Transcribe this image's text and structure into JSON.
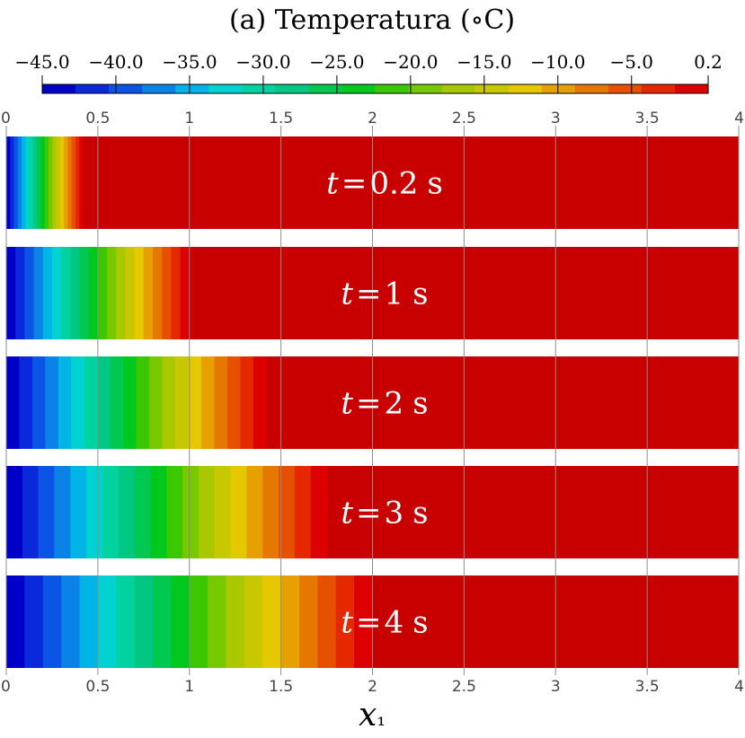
{
  "chart_data": {
    "type": "heatmap",
    "title": "(a) Temperatura (∘C)",
    "colorbar": {
      "min": -45.0,
      "max": 0.2,
      "tick_labels": [
        "−45.0",
        "−40.0",
        "−35.0",
        "−30.0",
        "−25.0",
        "−20.0",
        "−15.0",
        "−10.0",
        "−5.0",
        "0.2"
      ],
      "tick_values": [
        -45.0,
        -40.0,
        -35.0,
        -30.0,
        -25.0,
        -20.0,
        -15.0,
        -10.0,
        -5.0,
        0.2
      ],
      "colors": [
        "#0000c8",
        "#0a28dc",
        "#0a55e6",
        "#0a82e6",
        "#00b4e6",
        "#00d2d2",
        "#00d2a0",
        "#00c882",
        "#00c850",
        "#00c81e",
        "#3cc800",
        "#78c800",
        "#aac800",
        "#c8c800",
        "#e6c800",
        "#e6a000",
        "#e67800",
        "#e65000",
        "#e62800",
        "#dc0000"
      ]
    },
    "xlabel": "x₁",
    "x_ticks": [
      "0",
      "0.5",
      "1",
      "1.5",
      "2",
      "2.5",
      "3",
      "3.5",
      "4"
    ],
    "x_tick_values": [
      0,
      0.5,
      1,
      1.5,
      2,
      2.5,
      3,
      3.5,
      4
    ],
    "xlim": [
      0,
      4
    ],
    "grid": true,
    "series": [
      {
        "name": "t = 0.2 s",
        "front": 0.42
      },
      {
        "name": "t = 1 s",
        "front": 1.0
      },
      {
        "name": "t = 2 s",
        "front": 1.42
      },
      {
        "name": "t = 3 s",
        "front": 1.75
      },
      {
        "name": "t = 4 s",
        "front": 2.0
      }
    ],
    "labels": [
      {
        "t": "t",
        "eq": "=",
        "v": "0.2",
        "unit": "s"
      },
      {
        "t": "t",
        "eq": "=",
        "v": "1",
        "unit": "s"
      },
      {
        "t": "t",
        "eq": "=",
        "v": "2",
        "unit": "s"
      },
      {
        "t": "t",
        "eq": "=",
        "v": "3",
        "unit": "s"
      },
      {
        "t": "t",
        "eq": "=",
        "v": "4",
        "unit": "s"
      }
    ],
    "background_color": "#c80000"
  }
}
